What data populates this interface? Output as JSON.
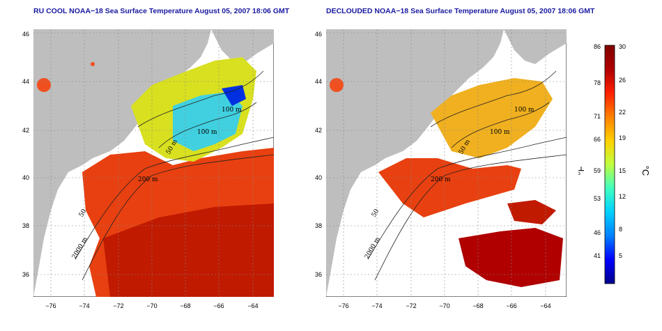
{
  "left_panel": {
    "title": "RU COOL NOAA−18 Sea Surface Temperature August 05, 2007 18:06 GMT",
    "contours": [
      "100 m",
      "100 m",
      "50 m",
      "200 m",
      "50",
      "2000 m"
    ]
  },
  "right_panel": {
    "title": "DECLOUDED NOAA−18 Sea Surface Temperature August 05, 2007 18:06 GMT",
    "contours": [
      "100 m",
      "100 m",
      "50 m",
      "200 m",
      "50",
      "2000 m"
    ]
  },
  "axes": {
    "x_ticks": [
      "−76",
      "−74",
      "−72",
      "−70",
      "−68",
      "−66",
      "−64"
    ],
    "y_ticks": [
      "46",
      "44",
      "42",
      "40",
      "38",
      "36"
    ]
  },
  "colorbar": {
    "fahrenheit_ticks": [
      "86",
      "78",
      "71",
      "66",
      "59",
      "53",
      "46",
      "41"
    ],
    "celsius_ticks": [
      "30",
      "26",
      "22",
      "19",
      "15",
      "12",
      "8",
      "5"
    ],
    "unit_f": "°F",
    "unit_c": "°C",
    "colors": [
      "#00008b",
      "#0000ff",
      "#0080ff",
      "#00d0ff",
      "#40ffc0",
      "#c0ff40",
      "#ffd000",
      "#ff8000",
      "#ff2000",
      "#b00000",
      "#800000"
    ]
  }
}
